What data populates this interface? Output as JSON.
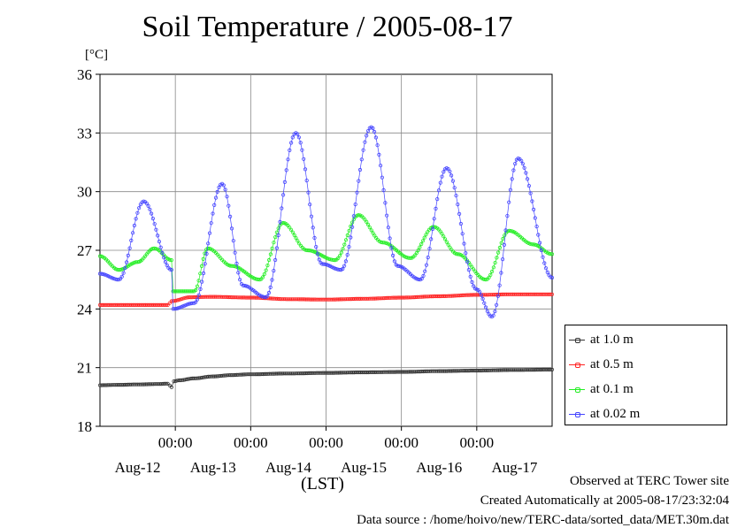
{
  "chart_data": {
    "type": "scatter",
    "title": "Soil Temperature / 2005-08-17",
    "ylabel_unit": "[°C]",
    "xlabel": "(LST)",
    "ylim": [
      18,
      36
    ],
    "yticks": [
      "18",
      "21",
      "24",
      "27",
      "30",
      "33",
      "36"
    ],
    "xticks_time": [
      "00:00",
      "00:00",
      "00:00",
      "00:00",
      "00:00"
    ],
    "xticks_date": [
      "Aug-12",
      "Aug-13",
      "Aug-14",
      "Aug-15",
      "Aug-16",
      "Aug-17"
    ],
    "xlim_days": [
      0,
      6
    ],
    "grid": true,
    "legend_position": "right",
    "series": [
      {
        "name": "at 1.0 m",
        "color": "#333333",
        "x": [
          0,
          0.25,
          0.5,
          0.75,
          0.9,
          0.95,
          0.98,
          1.05,
          1.25,
          1.5,
          1.75,
          2,
          2.5,
          3,
          3.5,
          4,
          4.5,
          5,
          5.5,
          6
        ],
        "y": [
          20.1,
          20.12,
          20.14,
          20.16,
          20.18,
          20.0,
          20.3,
          20.35,
          20.45,
          20.55,
          20.62,
          20.66,
          20.7,
          20.73,
          20.76,
          20.78,
          20.82,
          20.85,
          20.88,
          20.9
        ]
      },
      {
        "name": "at 0.5 m",
        "color": "#ff2222",
        "x": [
          0,
          0.5,
          0.9,
          0.95,
          1.2,
          1.5,
          2,
          2.5,
          3,
          3.5,
          4,
          4.5,
          5,
          5.5,
          6
        ],
        "y": [
          24.2,
          24.2,
          24.2,
          24.4,
          24.6,
          24.62,
          24.58,
          24.5,
          24.48,
          24.52,
          24.58,
          24.65,
          24.72,
          24.75,
          24.75
        ]
      },
      {
        "name": "at 0.1 m",
        "color": "#22ee22",
        "x": [
          0,
          0.25,
          0.5,
          0.72,
          0.95,
          0.97,
          1.25,
          1.43,
          1.75,
          2.12,
          2.43,
          2.75,
          3.12,
          3.43,
          3.75,
          4.12,
          4.43,
          4.75,
          5.12,
          5.43,
          5.75,
          6
        ],
        "y": [
          26.7,
          26.0,
          26.4,
          27.1,
          26.5,
          24.9,
          24.9,
          27.1,
          26.2,
          25.5,
          28.4,
          27.0,
          26.5,
          28.8,
          27.4,
          26.6,
          28.2,
          26.8,
          25.5,
          28.0,
          27.3,
          26.8
        ]
      },
      {
        "name": "at 0.02 m",
        "color": "#4444ff",
        "x": [
          0,
          0.25,
          0.58,
          0.95,
          0.97,
          1.25,
          1.62,
          1.9,
          2.2,
          2.6,
          2.95,
          3.2,
          3.6,
          3.95,
          4.25,
          4.6,
          5.0,
          5.2,
          5.55,
          6
        ],
        "y": [
          25.8,
          25.5,
          29.5,
          26.0,
          24.0,
          24.3,
          30.4,
          25.2,
          24.6,
          33.0,
          26.3,
          26.0,
          33.3,
          26.2,
          25.5,
          31.2,
          25.0,
          23.6,
          31.7,
          25.6
        ]
      }
    ]
  },
  "footer": {
    "site": "Observed at TERC Tower site",
    "created": "Created Automatically at 2005-08-17/23:32:04",
    "source": "Data source : /home/hoivo/new/TERC-data/sorted_data/MET.30m.dat"
  }
}
